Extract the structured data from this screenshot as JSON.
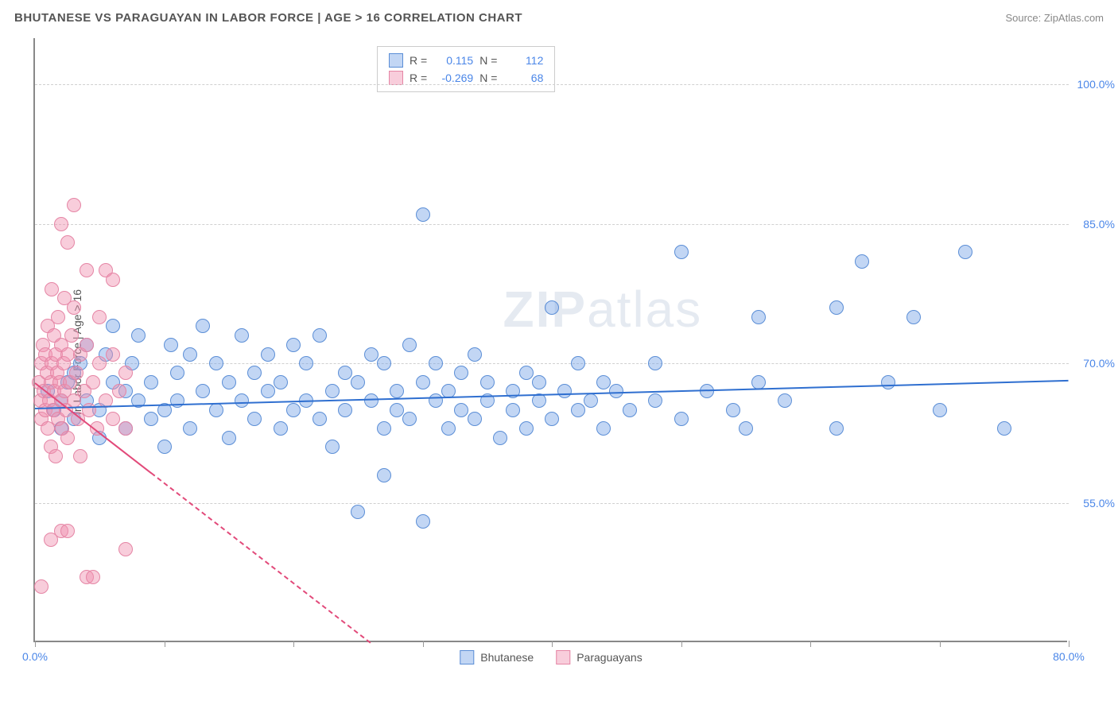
{
  "title": "BHUTANESE VS PARAGUAYAN IN LABOR FORCE | AGE > 16 CORRELATION CHART",
  "source": "Source: ZipAtlas.com",
  "watermark_a": "ZIP",
  "watermark_b": "atlas",
  "chart": {
    "type": "scatter",
    "ylabel": "In Labor Force | Age > 16",
    "xlim": [
      0,
      80
    ],
    "ylim": [
      40,
      105
    ],
    "xtick_positions": [
      0,
      10,
      20,
      30,
      40,
      50,
      60,
      70,
      80
    ],
    "xtick_labels_show": {
      "0": "0.0%",
      "80": "80.0%"
    },
    "ytick_positions": [
      55,
      70,
      85,
      100
    ],
    "ytick_labels": {
      "55": "55.0%",
      "70": "70.0%",
      "85": "85.0%",
      "100": "100.0%"
    },
    "grid_color": "#d0d0d0",
    "background_color": "#ffffff",
    "marker_radius": 9,
    "marker_border_width": 1.2
  },
  "series": [
    {
      "name": "Bhutanese",
      "fill": "rgba(120,165,230,0.45)",
      "stroke": "#5b8ed6",
      "trend": {
        "color": "#2f6fd0",
        "x1": 0,
        "y1": 65.2,
        "x2": 80,
        "y2": 68.2,
        "solid_until_x": 80
      },
      "stats": {
        "R": "0.115",
        "N": "112"
      },
      "points": [
        [
          1,
          67
        ],
        [
          1.5,
          65
        ],
        [
          2,
          66
        ],
        [
          2,
          63
        ],
        [
          2.5,
          68
        ],
        [
          3,
          69
        ],
        [
          3,
          64
        ],
        [
          3.5,
          70
        ],
        [
          4,
          66
        ],
        [
          4,
          72
        ],
        [
          5,
          65
        ],
        [
          5,
          62
        ],
        [
          5.5,
          71
        ],
        [
          6,
          68
        ],
        [
          6,
          74
        ],
        [
          7,
          67
        ],
        [
          7,
          63
        ],
        [
          7.5,
          70
        ],
        [
          8,
          66
        ],
        [
          8,
          73
        ],
        [
          9,
          68
        ],
        [
          9,
          64
        ],
        [
          10,
          65
        ],
        [
          10,
          61
        ],
        [
          10.5,
          72
        ],
        [
          11,
          69
        ],
        [
          11,
          66
        ],
        [
          12,
          63
        ],
        [
          12,
          71
        ],
        [
          13,
          67
        ],
        [
          13,
          74
        ],
        [
          14,
          65
        ],
        [
          14,
          70
        ],
        [
          15,
          68
        ],
        [
          15,
          62
        ],
        [
          16,
          66
        ],
        [
          16,
          73
        ],
        [
          17,
          64
        ],
        [
          17,
          69
        ],
        [
          18,
          67
        ],
        [
          18,
          71
        ],
        [
          19,
          63
        ],
        [
          19,
          68
        ],
        [
          20,
          65
        ],
        [
          20,
          72
        ],
        [
          21,
          66
        ],
        [
          21,
          70
        ],
        [
          22,
          64
        ],
        [
          22,
          73
        ],
        [
          23,
          67
        ],
        [
          23,
          61
        ],
        [
          24,
          69
        ],
        [
          24,
          65
        ],
        [
          25,
          68
        ],
        [
          25,
          54
        ],
        [
          26,
          66
        ],
        [
          26,
          71
        ],
        [
          27,
          63
        ],
        [
          27,
          70
        ],
        [
          27,
          58
        ],
        [
          28,
          67
        ],
        [
          28,
          65
        ],
        [
          29,
          64
        ],
        [
          29,
          72
        ],
        [
          30,
          68
        ],
        [
          30,
          53
        ],
        [
          30,
          86
        ],
        [
          31,
          66
        ],
        [
          31,
          70
        ],
        [
          32,
          63
        ],
        [
          32,
          67
        ],
        [
          33,
          65
        ],
        [
          33,
          69
        ],
        [
          34,
          64
        ],
        [
          34,
          71
        ],
        [
          35,
          66
        ],
        [
          35,
          68
        ],
        [
          36,
          62
        ],
        [
          37,
          67
        ],
        [
          37,
          65
        ],
        [
          38,
          69
        ],
        [
          38,
          63
        ],
        [
          39,
          66
        ],
        [
          39,
          68
        ],
        [
          40,
          64
        ],
        [
          40,
          76
        ],
        [
          41,
          67
        ],
        [
          42,
          65
        ],
        [
          42,
          70
        ],
        [
          43,
          66
        ],
        [
          44,
          63
        ],
        [
          44,
          68
        ],
        [
          45,
          67
        ],
        [
          46,
          65
        ],
        [
          48,
          66
        ],
        [
          48,
          70
        ],
        [
          50,
          64
        ],
        [
          50,
          82
        ],
        [
          52,
          67
        ],
        [
          54,
          65
        ],
        [
          55,
          63
        ],
        [
          56,
          68
        ],
        [
          56,
          75
        ],
        [
          58,
          66
        ],
        [
          62,
          76
        ],
        [
          62,
          63
        ],
        [
          64,
          81
        ],
        [
          66,
          68
        ],
        [
          68,
          75
        ],
        [
          70,
          65
        ],
        [
          72,
          82
        ],
        [
          75,
          63
        ]
      ]
    },
    {
      "name": "Paraguayans",
      "fill": "rgba(240,145,175,0.45)",
      "stroke": "#e585a5",
      "trend": {
        "color": "#e24a7a",
        "x1": 0,
        "y1": 68.0,
        "x2": 26,
        "y2": 40,
        "solid_until_x": 9
      },
      "stats": {
        "R": "-0.269",
        "N": "68"
      },
      "points": [
        [
          0.3,
          68
        ],
        [
          0.4,
          66
        ],
        [
          0.5,
          70
        ],
        [
          0.5,
          64
        ],
        [
          0.6,
          72
        ],
        [
          0.7,
          67
        ],
        [
          0.8,
          65
        ],
        [
          0.8,
          71
        ],
        [
          0.9,
          69
        ],
        [
          1,
          63
        ],
        [
          1,
          74
        ],
        [
          1.1,
          66
        ],
        [
          1.2,
          68
        ],
        [
          1.2,
          61
        ],
        [
          1.3,
          70
        ],
        [
          1.3,
          78
        ],
        [
          1.4,
          65
        ],
        [
          1.5,
          73
        ],
        [
          1.5,
          67
        ],
        [
          1.6,
          71
        ],
        [
          1.6,
          60
        ],
        [
          1.7,
          69
        ],
        [
          1.8,
          64
        ],
        [
          1.8,
          75
        ],
        [
          1.9,
          68
        ],
        [
          2,
          66
        ],
        [
          2,
          72
        ],
        [
          2,
          85
        ],
        [
          2.1,
          63
        ],
        [
          2.2,
          70
        ],
        [
          2.3,
          67
        ],
        [
          2.3,
          77
        ],
        [
          2.4,
          65
        ],
        [
          2.5,
          71
        ],
        [
          2.5,
          62
        ],
        [
          2.5,
          83
        ],
        [
          2.7,
          68
        ],
        [
          2.8,
          73
        ],
        [
          3,
          66
        ],
        [
          3,
          76
        ],
        [
          3,
          87
        ],
        [
          3.2,
          69
        ],
        [
          3.3,
          64
        ],
        [
          3.5,
          71
        ],
        [
          3.5,
          60
        ],
        [
          3.8,
          67
        ],
        [
          4,
          72
        ],
        [
          4,
          80
        ],
        [
          4.2,
          65
        ],
        [
          4.5,
          68
        ],
        [
          4.8,
          63
        ],
        [
          5,
          70
        ],
        [
          5,
          75
        ],
        [
          5.5,
          66
        ],
        [
          5.5,
          80
        ],
        [
          6,
          64
        ],
        [
          6,
          71
        ],
        [
          6.5,
          67
        ],
        [
          7,
          63
        ],
        [
          7,
          69
        ],
        [
          1.2,
          51
        ],
        [
          2,
          52
        ],
        [
          2.5,
          52
        ],
        [
          0.5,
          46
        ],
        [
          4,
          47
        ],
        [
          4.5,
          47
        ],
        [
          7,
          50
        ],
        [
          6,
          79
        ]
      ]
    }
  ],
  "stats_box": {
    "r_label": "R =",
    "n_label": "N ="
  },
  "legend": {
    "label_a": "Bhutanese",
    "label_b": "Paraguayans"
  }
}
